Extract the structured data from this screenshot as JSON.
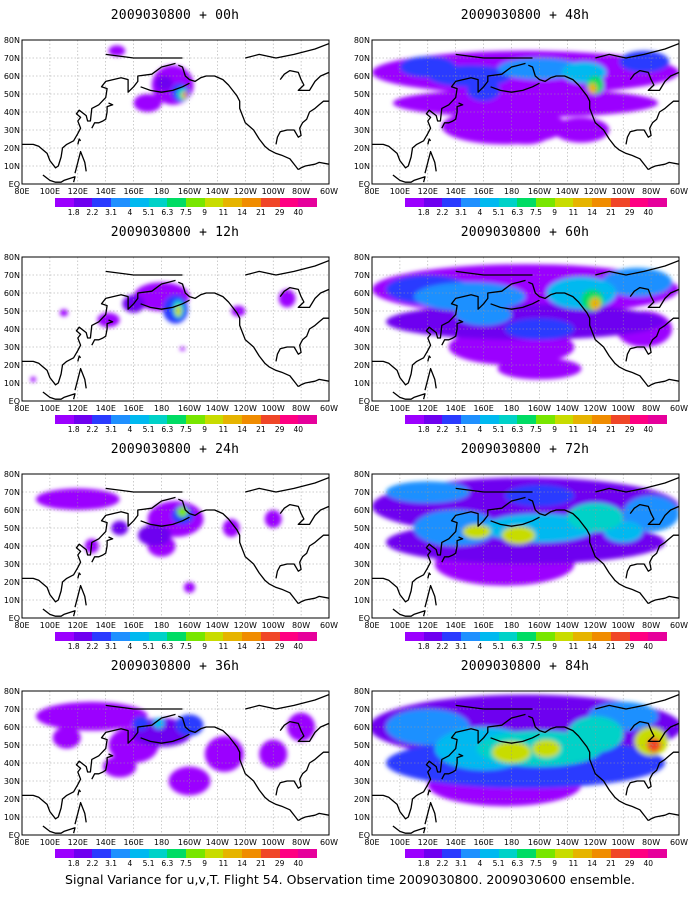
{
  "caption": "Signal Variance for u,v,T. Flight 54. Observation time 2009030800. 2009030600 ensemble.",
  "colorbar": {
    "levels": [
      "1.8",
      "2.2",
      "3.1",
      "4",
      "5.1",
      "6.3",
      "7.5",
      "9",
      "11",
      "14",
      "21",
      "29",
      "40"
    ],
    "colors": [
      "#9b00ff",
      "#6e00f0",
      "#2a3bff",
      "#1f90ff",
      "#00b9f0",
      "#00d2c8",
      "#00dc64",
      "#78e600",
      "#c8dc00",
      "#e6b400",
      "#f08c00",
      "#f04628",
      "#ff0082",
      "#e6009b"
    ]
  },
  "axes": {
    "lat_labels": [
      "80N",
      "70N",
      "60N",
      "50N",
      "40N",
      "30N",
      "20N",
      "10N",
      "EQ"
    ],
    "lon_labels": [
      "80E",
      "100E",
      "120E",
      "140E",
      "160E",
      "180",
      "160W",
      "140W",
      "120W",
      "100W",
      "80W",
      "60W"
    ],
    "lat_range": [
      0,
      80
    ],
    "lon_range": [
      80,
      300
    ]
  },
  "panels": [
    {
      "id": "p00",
      "title": "2009030800 + 00h",
      "lead_hours": 0
    },
    {
      "id": "p48",
      "title": "2009030800 + 48h",
      "lead_hours": 48
    },
    {
      "id": "p12",
      "title": "2009030800 + 12h",
      "lead_hours": 12
    },
    {
      "id": "p60",
      "title": "2009030800 + 60h",
      "lead_hours": 60
    },
    {
      "id": "p24",
      "title": "2009030800 + 24h",
      "lead_hours": 24
    },
    {
      "id": "p72",
      "title": "2009030800 + 72h",
      "lead_hours": 72
    },
    {
      "id": "p36",
      "title": "2009030800 + 36h",
      "lead_hours": 36
    },
    {
      "id": "p84",
      "title": "2009030800 + 84h",
      "lead_hours": 84
    }
  ]
}
